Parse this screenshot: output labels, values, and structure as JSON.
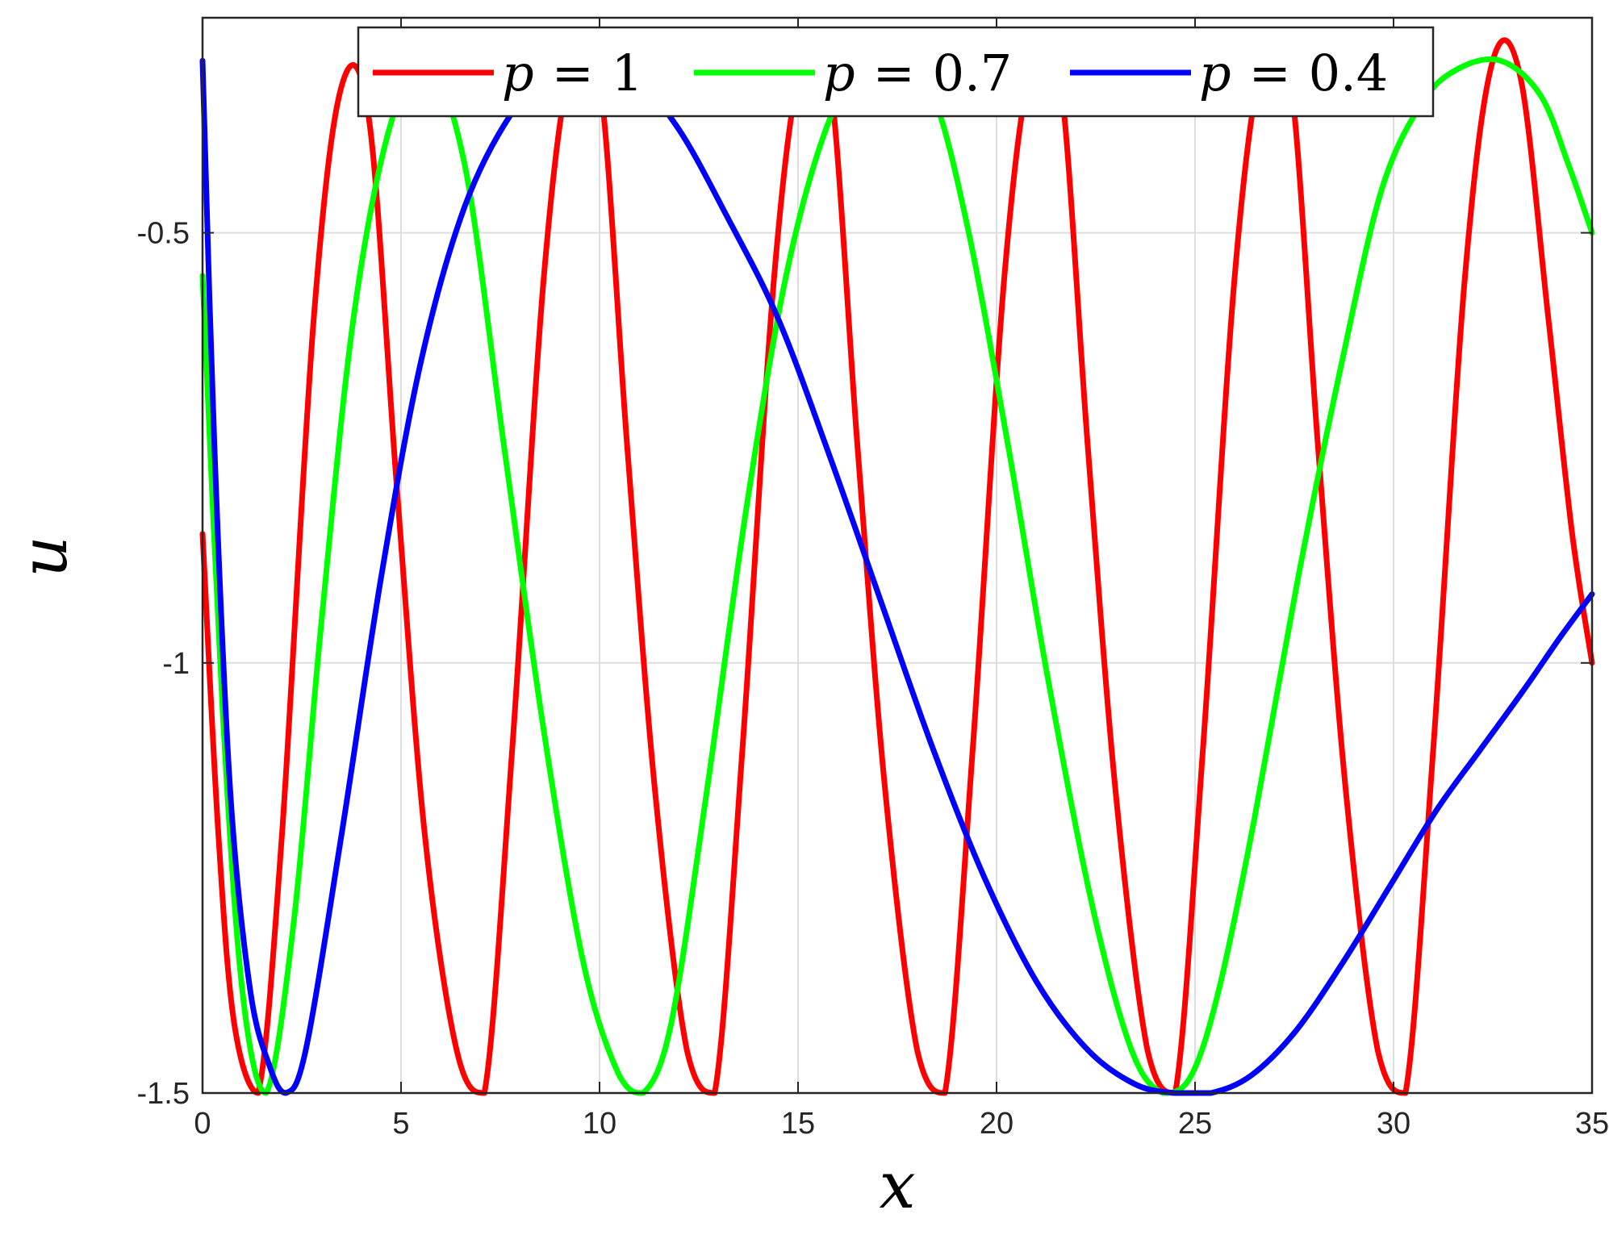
{
  "chart_data": {
    "type": "line",
    "title": "",
    "xlabel": "x",
    "ylabel": "u",
    "xlim": [
      0,
      35
    ],
    "ylim": [
      -1.5,
      -0.25
    ],
    "xticks": [
      0,
      5,
      10,
      15,
      20,
      25,
      30,
      35
    ],
    "xtick_labels": [
      "0",
      "5",
      "10",
      "15",
      "20",
      "25",
      "30",
      "35"
    ],
    "yticks": [
      -1.5,
      -1,
      -0.5
    ],
    "ytick_labels": [
      "-1.5",
      "-1",
      "-0.5"
    ],
    "grid": true,
    "legend_position": "top",
    "series": [
      {
        "name": "p = 1",
        "legend_var": "p",
        "legend_eq": "=",
        "legend_value": "1",
        "color": "#ff0000",
        "x": [
          0,
          0.4,
          0.8,
          1.4,
          2.0,
          2.8,
          3.5,
          4.2,
          4.9,
          5.6,
          6.4,
          7.1,
          7.8,
          8.6,
          9.3,
          10.0,
          10.7,
          11.4,
          12.2,
          12.9,
          13.6,
          14.4,
          15.1,
          15.8,
          16.5,
          17.2,
          18.0,
          18.7,
          19.4,
          20.2,
          20.9,
          21.6,
          22.3,
          23.0,
          23.8,
          24.5,
          25.2,
          26.0,
          26.7,
          27.4,
          28.1,
          28.8,
          29.6,
          30.3,
          31.0,
          31.8,
          32.5,
          33.2,
          33.9,
          34.5,
          35.0
        ],
        "y": [
          -0.85,
          -1.2,
          -1.42,
          -1.5,
          -1.2,
          -0.6,
          -0.33,
          -0.37,
          -0.8,
          -1.2,
          -1.45,
          -1.5,
          -1.1,
          -0.55,
          -0.3,
          -0.32,
          -0.75,
          -1.15,
          -1.45,
          -1.5,
          -1.1,
          -0.55,
          -0.3,
          -0.32,
          -0.75,
          -1.15,
          -1.45,
          -1.5,
          -1.1,
          -0.55,
          -0.3,
          -0.32,
          -0.75,
          -1.15,
          -1.45,
          -1.5,
          -1.1,
          -0.55,
          -0.3,
          -0.32,
          -0.75,
          -1.15,
          -1.45,
          -1.5,
          -1.1,
          -0.55,
          -0.3,
          -0.32,
          -0.6,
          -0.85,
          -1.0
        ]
      },
      {
        "name": "p = 0.7",
        "legend_var": "p",
        "legend_eq": "=",
        "legend_value": "0.7",
        "color": "#00ff00",
        "x": [
          0,
          0.5,
          1.0,
          1.6,
          2.3,
          3.0,
          3.8,
          4.7,
          5.6,
          6.6,
          7.6,
          8.6,
          9.6,
          10.5,
          11.1,
          11.8,
          12.7,
          13.7,
          14.7,
          15.7,
          16.6,
          17.5,
          18.4,
          19.3,
          20.3,
          21.3,
          22.4,
          23.4,
          24.2,
          24.9,
          25.6,
          26.5,
          27.6,
          28.7,
          29.7,
          30.7,
          31.6,
          32.7,
          33.7,
          34.4,
          35.0
        ],
        "y": [
          -0.55,
          -1.05,
          -1.38,
          -1.5,
          -1.3,
          -0.95,
          -0.6,
          -0.38,
          -0.3,
          -0.42,
          -0.75,
          -1.08,
          -1.35,
          -1.48,
          -1.5,
          -1.42,
          -1.15,
          -0.82,
          -0.55,
          -0.38,
          -0.31,
          -0.3,
          -0.34,
          -0.5,
          -0.75,
          -1.02,
          -1.28,
          -1.45,
          -1.5,
          -1.48,
          -1.38,
          -1.18,
          -0.9,
          -0.65,
          -0.45,
          -0.35,
          -0.31,
          -0.3,
          -0.34,
          -0.42,
          -0.5
        ]
      },
      {
        "name": "p = 0.4",
        "legend_var": "p",
        "legend_eq": "=",
        "legend_value": "0.4",
        "color": "#0000ff",
        "x": [
          0,
          0.3,
          0.7,
          1.2,
          1.7,
          2.1,
          2.6,
          3.5,
          4.5,
          5.5,
          6.6,
          7.8,
          8.9,
          9.8,
          10.9,
          12.0,
          13.2,
          14.5,
          15.8,
          17.1,
          18.4,
          19.7,
          21.0,
          22.3,
          23.5,
          24.5,
          25.4,
          26.4,
          27.5,
          28.7,
          29.9,
          31.1,
          32.2,
          33.3,
          34.2,
          35.0
        ],
        "y": [
          -0.3,
          -0.75,
          -1.15,
          -1.38,
          -1.47,
          -1.5,
          -1.45,
          -1.2,
          -0.9,
          -0.65,
          -0.47,
          -0.36,
          -0.31,
          -0.3,
          -0.32,
          -0.38,
          -0.48,
          -0.6,
          -0.76,
          -0.93,
          -1.1,
          -1.25,
          -1.37,
          -1.45,
          -1.49,
          -1.5,
          -1.5,
          -1.48,
          -1.43,
          -1.35,
          -1.26,
          -1.17,
          -1.1,
          -1.03,
          -0.97,
          -0.92
        ]
      }
    ]
  }
}
